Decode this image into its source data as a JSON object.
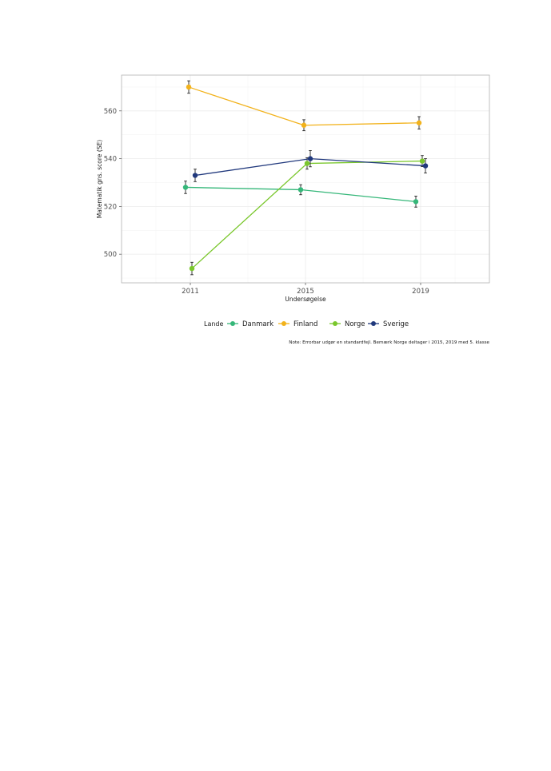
{
  "chart_data": {
    "type": "line",
    "title": "",
    "xlabel": "Undersøgelse",
    "ylabel": "Matematik gns. score (SE)",
    "categories": [
      "2011",
      "2015",
      "2019"
    ],
    "yticks": [
      500,
      520,
      540,
      560
    ],
    "ylim": [
      488,
      575
    ],
    "grid": true,
    "legend_position": "bottom",
    "legend_title": "Lande",
    "series": [
      {
        "name": "Danmark",
        "color": "#35b779",
        "values": [
          528,
          527,
          522
        ],
        "se": [
          2.6,
          2.1,
          2.3
        ]
      },
      {
        "name": "Finland",
        "color": "#f2b21b",
        "values": [
          570,
          554,
          555
        ],
        "se": [
          2.6,
          2.3,
          2.6
        ]
      },
      {
        "name": "Norge",
        "color": "#7ac72c",
        "values": [
          494,
          538,
          539
        ],
        "se": [
          2.6,
          2.4,
          2.3
        ]
      },
      {
        "name": "Sverige",
        "color": "#21397d",
        "values": [
          533,
          540,
          537
        ],
        "se": [
          2.6,
          3.4,
          3.0
        ]
      }
    ],
    "note": "Note: Errorbar udgør en standardfejl. Bemærk Norge deltager i 2015, 2019 med 5. klasse"
  }
}
